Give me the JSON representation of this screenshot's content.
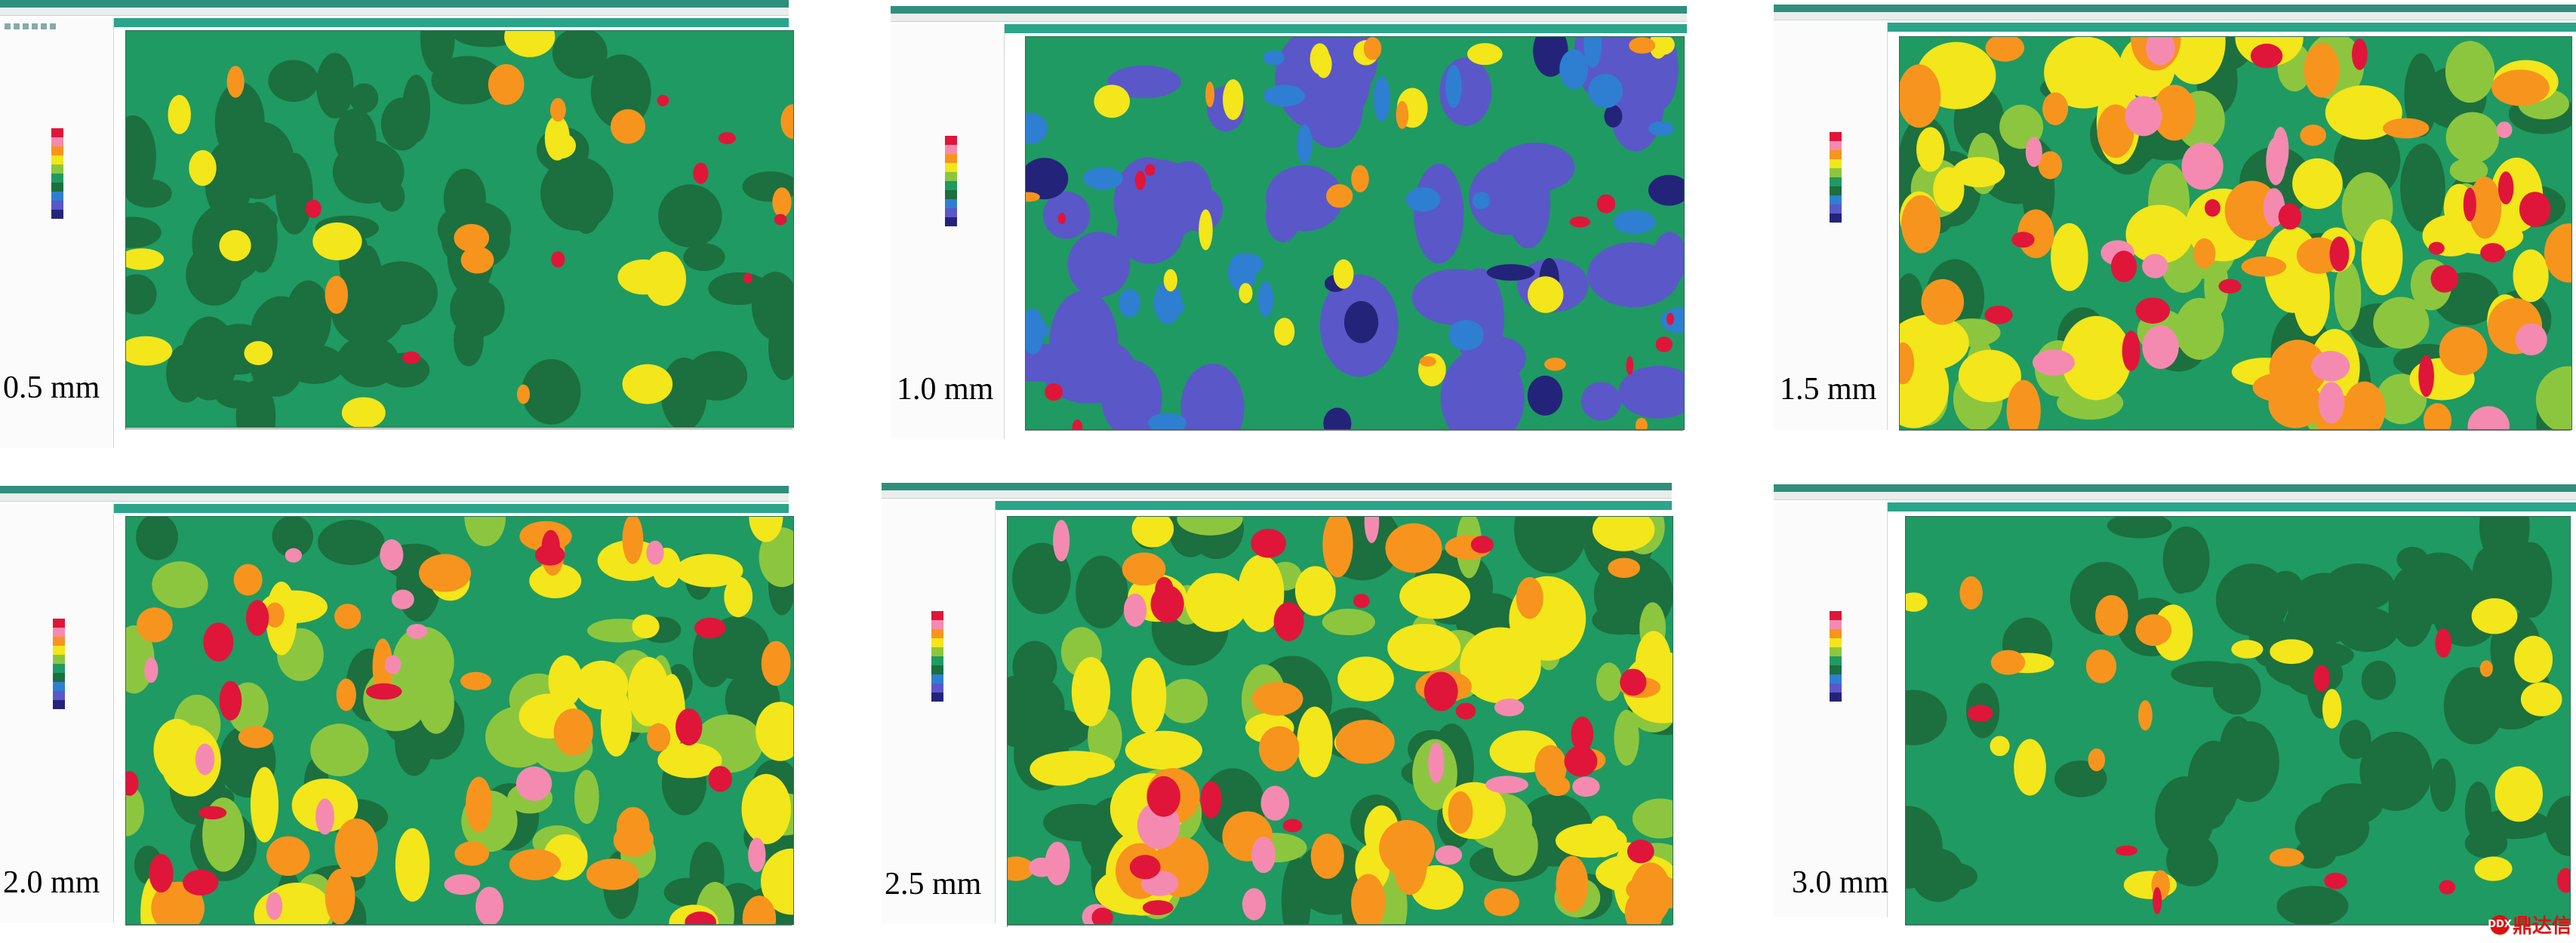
{
  "panels": [
    {
      "label": "0.5 mm",
      "palette": "green"
    },
    {
      "label": "1.0 mm",
      "palette": "blue"
    },
    {
      "label": "1.5 mm",
      "palette": "hot"
    },
    {
      "label": "2.0 mm",
      "palette": "warm"
    },
    {
      "label": "2.5 mm",
      "palette": "hot"
    },
    {
      "label": "3.0 mm",
      "palette": "green"
    }
  ],
  "colors": {
    "red": "#e0153a",
    "pink": "#f58ab0",
    "orange": "#f7941d",
    "yellow": "#f3e61a",
    "lightgreen": "#8cc63f",
    "green": "#1f9a62",
    "darkgreen": "#1c6f3e",
    "blue": "#2e7fd1",
    "purple": "#5a57c9",
    "navy": "#24237a"
  },
  "legend_colors": [
    "#e0153a",
    "#f58ab0",
    "#f7941d",
    "#f3e61a",
    "#8cc63f",
    "#1f9a62",
    "#1c6f3e",
    "#2e7fd1",
    "#5a57c9",
    "#24237a"
  ],
  "watermark": {
    "text": "鼎达信",
    "badge": "DDX"
  }
}
